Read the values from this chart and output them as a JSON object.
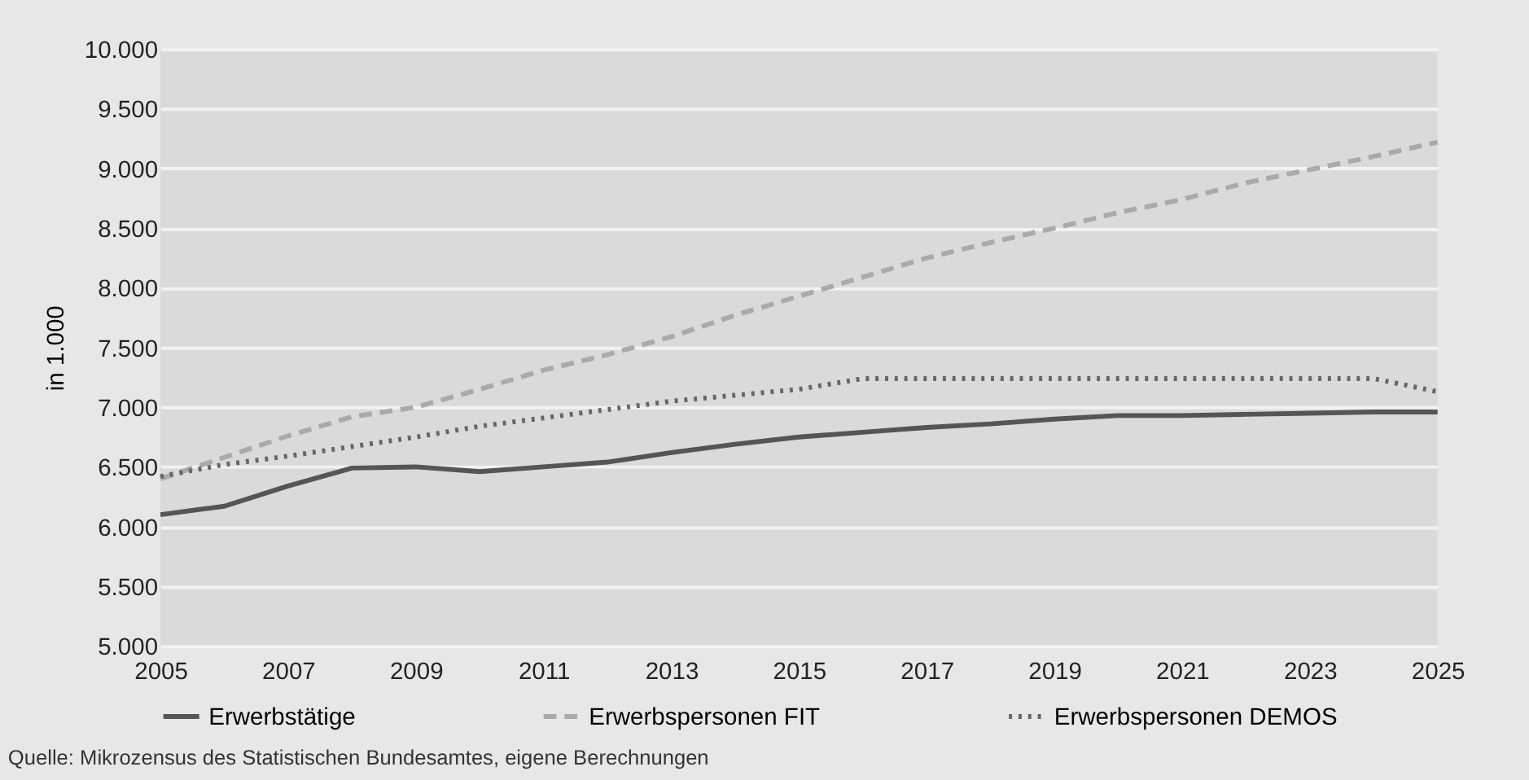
{
  "chart_data": {
    "type": "line",
    "ylabel": "in 1.000",
    "x": [
      2005,
      2006,
      2007,
      2008,
      2009,
      2010,
      2011,
      2012,
      2013,
      2014,
      2015,
      2016,
      2017,
      2018,
      2019,
      2020,
      2021,
      2022,
      2023,
      2024,
      2025
    ],
    "series": [
      {
        "name": "Erwerbstätige",
        "color": "#555555",
        "line_style": "solid",
        "values": [
          6100,
          6170,
          6340,
          6490,
          6500,
          6460,
          6500,
          6540,
          6620,
          6690,
          6750,
          6790,
          6830,
          6860,
          6900,
          6930,
          6930,
          6940,
          6950,
          6960,
          6960
        ]
      },
      {
        "name": "Erwerbspersonen FIT",
        "color": "#aaaaaa",
        "line_style": "dashed",
        "values": [
          6400,
          6580,
          6760,
          6920,
          7000,
          7150,
          7310,
          7440,
          7590,
          7770,
          7930,
          8090,
          8250,
          8380,
          8500,
          8630,
          8740,
          8880,
          8990,
          9100,
          9220
        ]
      },
      {
        "name": "Erwerbspersonen DEMOS",
        "color": "#666666",
        "line_style": "dotted",
        "values": [
          6420,
          6520,
          6590,
          6670,
          6750,
          6840,
          6910,
          6980,
          7050,
          7100,
          7150,
          7240,
          7240,
          7240,
          7240,
          7240,
          7240,
          7240,
          7240,
          7240,
          7130
        ]
      }
    ],
    "xlim": [
      2005,
      2025
    ],
    "xticks": [
      2005,
      2007,
      2009,
      2011,
      2013,
      2015,
      2017,
      2019,
      2021,
      2023,
      2025
    ],
    "ylim": [
      5000,
      10000
    ],
    "yticks": [
      {
        "value": 5000,
        "label": "5.000"
      },
      {
        "value": 5500,
        "label": "5.500"
      },
      {
        "value": 6000,
        "label": "6.000"
      },
      {
        "value": 6500,
        "label": "6.500"
      },
      {
        "value": 7000,
        "label": "7.000"
      },
      {
        "value": 7500,
        "label": "7.500"
      },
      {
        "value": 8000,
        "label": "8.000"
      },
      {
        "value": 8500,
        "label": "8.500"
      },
      {
        "value": 9000,
        "label": "9.000"
      },
      {
        "value": 9500,
        "label": "9.500"
      },
      {
        "value": 10000,
        "label": "10.000"
      }
    ],
    "grid": "y",
    "legend": "bottom",
    "marker": "none",
    "annotations": [
      "Quelle: Mikrozensus des Statistischen Bundesamtes, eigene Berechnungen"
    ]
  }
}
